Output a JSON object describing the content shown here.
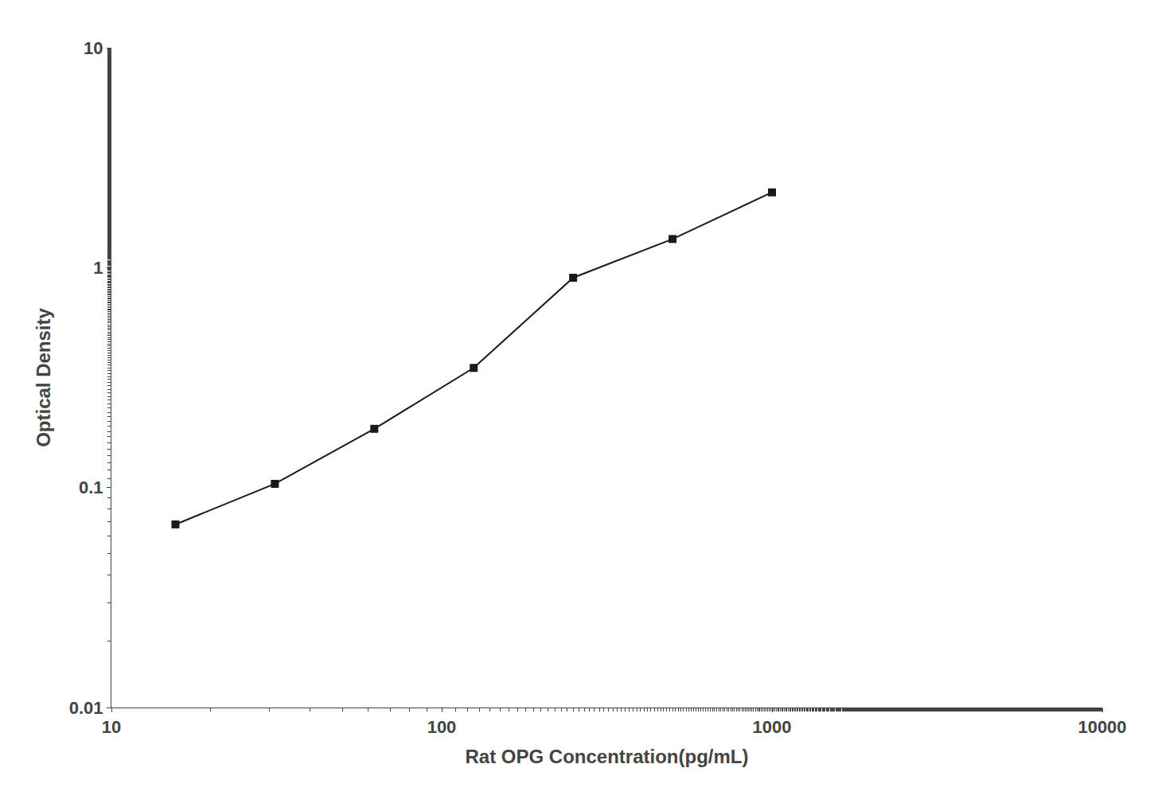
{
  "chart_data": {
    "type": "line",
    "xlabel": "Rat OPG Concentration(pg/mL)",
    "ylabel": "Optical Density",
    "x": [
      15.625,
      31.25,
      62.5,
      125,
      250,
      500,
      1000
    ],
    "values": [
      0.068,
      0.104,
      0.185,
      0.35,
      0.9,
      1.35,
      2.2
    ],
    "color": "#1a1a1a",
    "marker": "square",
    "line_style": "solid",
    "log": true,
    "xlim": [
      10,
      10000
    ],
    "ylim": [
      0.01,
      10
    ],
    "xticks": [
      10,
      100,
      1000,
      10000
    ],
    "yticks": [
      0.01,
      0.1,
      1,
      10
    ],
    "grid": false
  }
}
